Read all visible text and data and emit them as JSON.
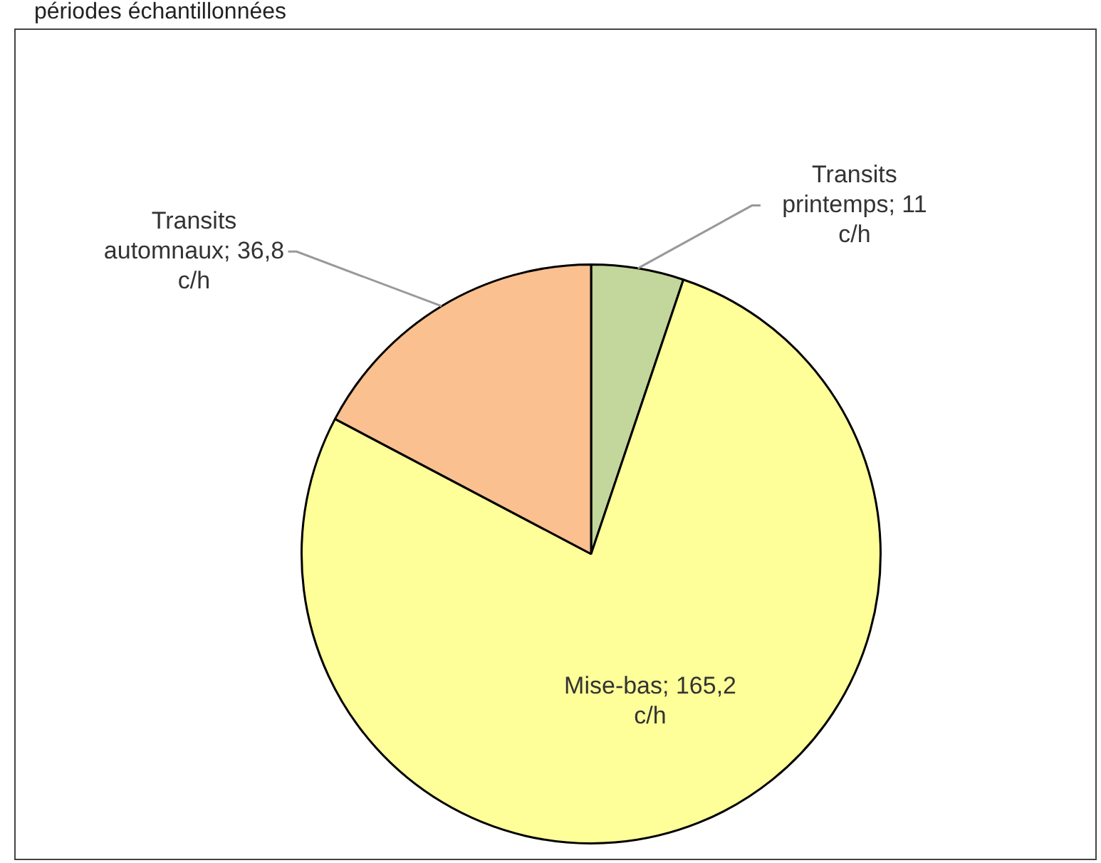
{
  "chart_data": {
    "type": "pie",
    "annotations": [
      "périodes échantillonnées"
    ],
    "categories": [
      "Transits printemps",
      "Mise-bas",
      "Transits automnaux"
    ],
    "values": [
      11,
      165.2,
      36.8
    ],
    "colors": [
      "#c3d69b",
      "#ffff99",
      "#fac090"
    ],
    "value_labels": [
      "11 c/h",
      "165,2 c/h",
      "36,8 c/h"
    ],
    "legend": false
  }
}
